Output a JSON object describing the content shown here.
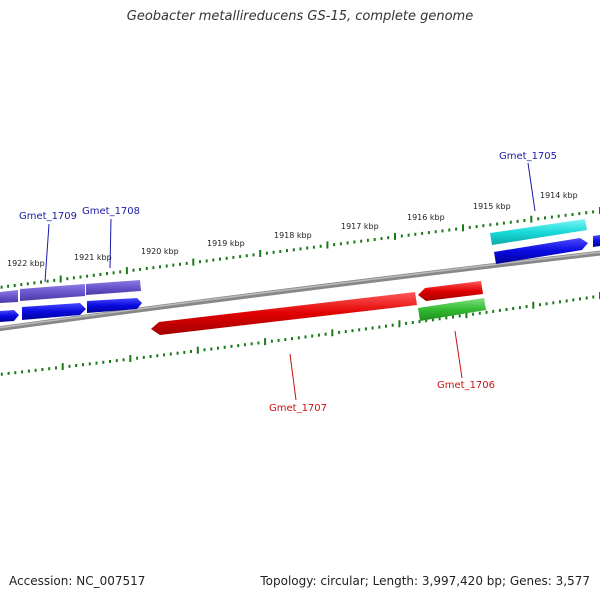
{
  "title": "Geobacter metallireducens GS-15, complete genome",
  "footer": {
    "accession": "Accession: NC_007517",
    "summary": "Topology: circular; Length: 3,997,420 bp; Genes: 3,577"
  },
  "ticks": [
    "1914 kbp",
    "1915 kbp",
    "1916 kbp",
    "1917 kbp",
    "1918 kbp",
    "1919 kbp",
    "1920 kbp",
    "1921 kbp",
    "1922 kbp"
  ],
  "genes": [
    {
      "name": "Gmet_1705",
      "color": "#00a0d0"
    },
    {
      "name": "Gmet_1706",
      "color": "#cc0000"
    },
    {
      "name": "Gmet_1707",
      "color": "#cc0000"
    },
    {
      "name": "Gmet_1708",
      "color": "#0000c8"
    },
    {
      "name": "Gmet_1709",
      "color": "#0000c8"
    }
  ],
  "colors": {
    "blue": "#0a0ae0",
    "purple": "#6a55cc",
    "cyan": "#1adada",
    "red": "#e00000",
    "green": "#33bb33",
    "backbone": "#777777",
    "tick": "#1a7a1a"
  }
}
